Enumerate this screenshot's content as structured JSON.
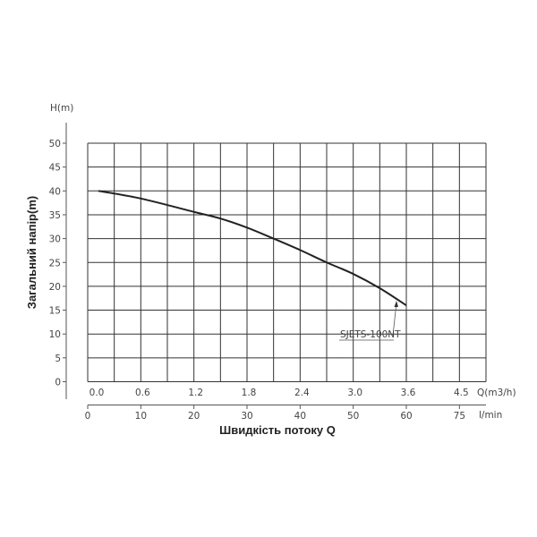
{
  "chart_data": {
    "type": "line",
    "ylabel": "Загальний напір(m)",
    "y_unit_label": "H(m)",
    "xlabel": "Швидкість потоку Q",
    "x_unit_label": "l/min",
    "x2_unit_label": "Q(m3/h)",
    "ylim": [
      0,
      50
    ],
    "xlim": [
      0,
      75
    ],
    "y_ticks": [
      "0",
      "5",
      "10",
      "15",
      "20",
      "25",
      "30",
      "35",
      "40",
      "45",
      "50"
    ],
    "x_ticks": [
      {
        "value": 0,
        "label": "0"
      },
      {
        "value": 10,
        "label": "10"
      },
      {
        "value": 20,
        "label": "20"
      },
      {
        "value": 30,
        "label": "30"
      },
      {
        "value": 40,
        "label": "40"
      },
      {
        "value": 50,
        "label": "50"
      },
      {
        "value": 60,
        "label": "60"
      },
      {
        "value": 75,
        "label": "75"
      }
    ],
    "x2_ticks": [
      {
        "value": 0,
        "label": "0.0"
      },
      {
        "value": 10,
        "label": "0.6"
      },
      {
        "value": 20,
        "label": "1.2"
      },
      {
        "value": 30,
        "label": "1.8"
      },
      {
        "value": 40,
        "label": "2.4"
      },
      {
        "value": 50,
        "label": "3.0"
      },
      {
        "value": 60,
        "label": "3.6"
      },
      {
        "value": 75,
        "label": "4.5"
      }
    ],
    "grid": true,
    "series": [
      {
        "name": "SJETS-100NT",
        "x": [
          2,
          10,
          20,
          25,
          30,
          35,
          40,
          45,
          50,
          55,
          60
        ],
        "y": [
          40,
          38.4,
          35.6,
          34.2,
          32.3,
          30,
          27.6,
          25,
          22.6,
          19.6,
          16
        ],
        "color": "#222222"
      }
    ]
  }
}
